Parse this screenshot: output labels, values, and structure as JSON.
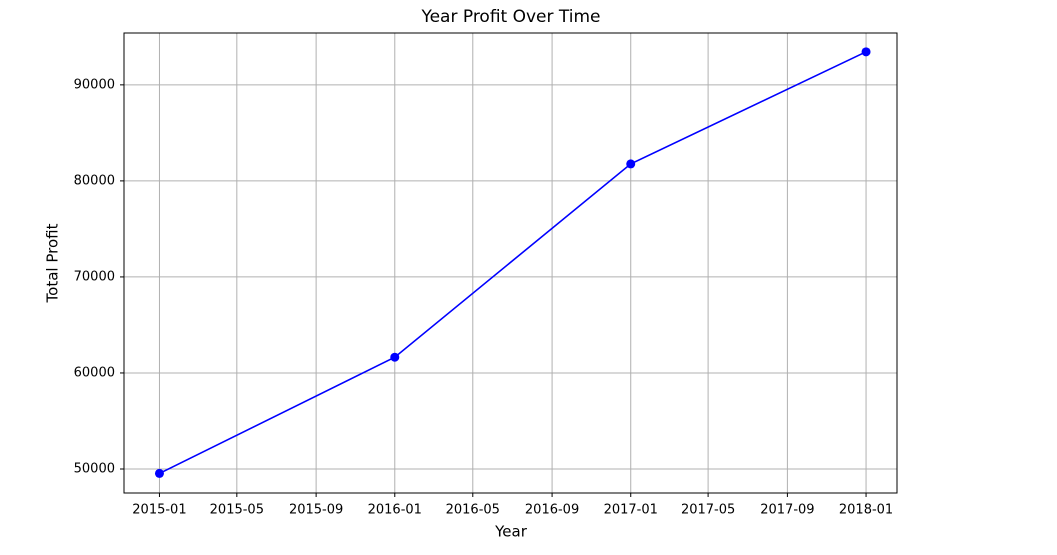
{
  "chart_data": {
    "type": "line",
    "title": "Year Profit Over Time",
    "x_label": "Year",
    "y_label": "Total Profit",
    "x": [
      "2015-01",
      "2016-01",
      "2017-01",
      "2018-01"
    ],
    "series": [
      {
        "name": "Total Profit",
        "color": "#0000ff",
        "values": [
          49540,
          61640,
          81770,
          93440
        ]
      }
    ],
    "xlim": [
      "2014-11-07",
      "2018-02-18"
    ],
    "xticks": [
      "2015-01",
      "2015-05",
      "2015-09",
      "2016-01",
      "2016-05",
      "2016-09",
      "2017-01",
      "2017-05",
      "2017-09",
      "2018-01"
    ],
    "ylim": [
      47500,
      95400
    ],
    "yticks": [
      50000,
      60000,
      70000,
      80000,
      90000
    ],
    "grid": true,
    "marker": "circle"
  }
}
